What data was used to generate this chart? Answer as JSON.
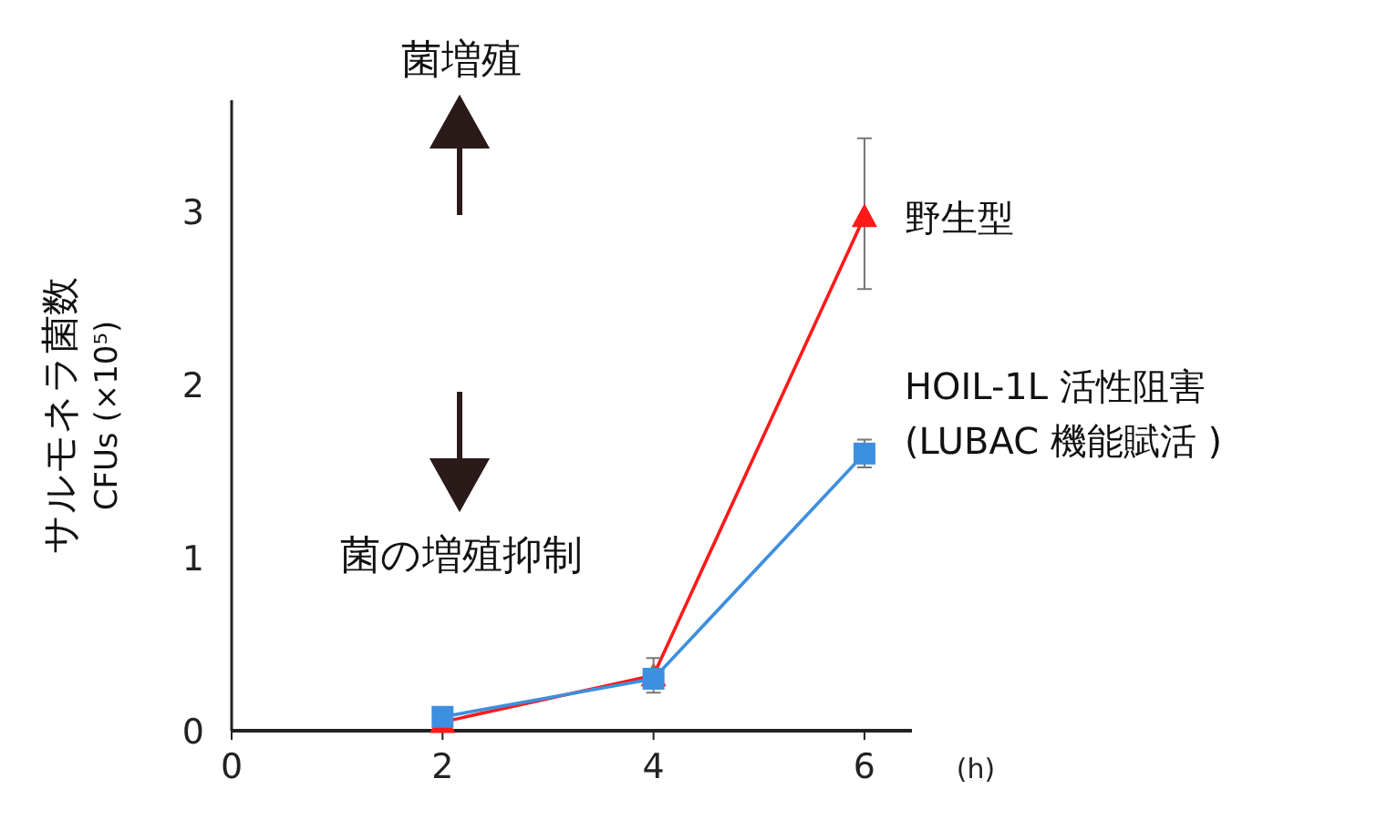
{
  "chart_data": {
    "type": "line",
    "ylabel": "サルモネラ菌数\nCFUs (×10⁵)",
    "xlabel": "(h)",
    "x": [
      2,
      4,
      6
    ],
    "xlim": [
      0,
      6.45
    ],
    "xticks": [
      0,
      2,
      4,
      6
    ],
    "ylim": [
      0,
      3.64
    ],
    "yticks": [
      0,
      1,
      2,
      3
    ],
    "grid": false,
    "series": [
      {
        "name": "野生型",
        "color": "#ff1a1a",
        "marker": "triangle",
        "values": [
          0.05,
          0.32,
          2.97
        ],
        "errors": [
          null,
          null,
          [
            2.55,
            3.42
          ]
        ]
      },
      {
        "name": "HOIL-1L 活性阻害\n(LUBAC 機能賦活 )",
        "color": "#3d8fe0",
        "marker": "square",
        "values": [
          0.08,
          0.3,
          1.6
        ],
        "errors": [
          null,
          [
            0.22,
            0.42
          ],
          [
            1.52,
            1.68
          ]
        ]
      }
    ],
    "annotations": [
      "菌増殖",
      "菌の増殖抑制"
    ]
  }
}
